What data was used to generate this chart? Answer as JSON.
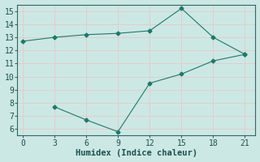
{
  "line1_x": [
    0,
    3,
    6,
    9,
    12,
    15,
    18,
    21
  ],
  "line1_y": [
    12.7,
    13.0,
    13.2,
    13.3,
    13.5,
    15.2,
    13.0,
    11.7
  ],
  "line2_x": [
    3,
    6,
    9,
    12,
    15,
    18,
    21
  ],
  "line2_y": [
    7.7,
    6.7,
    5.8,
    9.5,
    10.2,
    11.2,
    11.7
  ],
  "line_color": "#1a7a6e",
  "marker": "D",
  "markersize": 2.5,
  "xlabel": "Humidex (Indice chaleur)",
  "xlim": [
    -0.5,
    22
  ],
  "ylim": [
    5.5,
    15.5
  ],
  "xticks": [
    0,
    3,
    6,
    9,
    12,
    15,
    18,
    21
  ],
  "yticks": [
    6,
    7,
    8,
    9,
    10,
    11,
    12,
    13,
    14,
    15
  ],
  "background_color": "#cce8e4",
  "grid_color": "#e8c8c8",
  "title_fontsize": 7.5,
  "axis_fontsize": 7
}
